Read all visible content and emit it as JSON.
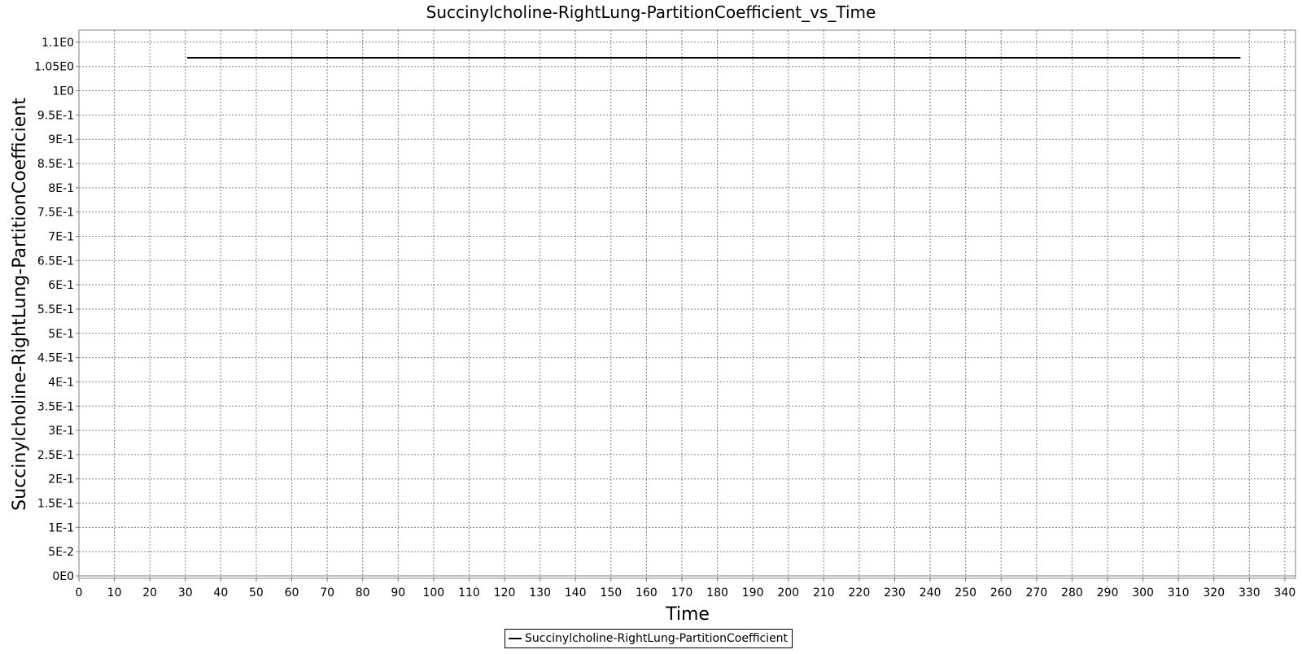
{
  "chart_data": {
    "type": "line",
    "title": "Succinylcholine-RightLung-PartitionCoefficient_vs_Time",
    "xlabel": "Time",
    "ylabel": "Succinylcholine-RightLung-PartitionCoefficient",
    "xlim": [
      0,
      343
    ],
    "ylim": [
      -0.005,
      1.125
    ],
    "x_ticks": [
      0,
      10,
      20,
      30,
      40,
      50,
      60,
      70,
      80,
      90,
      100,
      110,
      120,
      130,
      140,
      150,
      160,
      170,
      180,
      190,
      200,
      210,
      220,
      230,
      240,
      250,
      260,
      270,
      280,
      290,
      300,
      310,
      320,
      330,
      340
    ],
    "y_ticks": [
      {
        "value": 0,
        "label": "0E0"
      },
      {
        "value": 0.05,
        "label": "5E-2"
      },
      {
        "value": 0.1,
        "label": "1E-1"
      },
      {
        "value": 0.15,
        "label": "1.5E-1"
      },
      {
        "value": 0.2,
        "label": "2E-1"
      },
      {
        "value": 0.25,
        "label": "2.5E-1"
      },
      {
        "value": 0.3,
        "label": "3E-1"
      },
      {
        "value": 0.35,
        "label": "3.5E-1"
      },
      {
        "value": 0.4,
        "label": "4E-1"
      },
      {
        "value": 0.45,
        "label": "4.5E-1"
      },
      {
        "value": 0.5,
        "label": "5E-1"
      },
      {
        "value": 0.55,
        "label": "5.5E-1"
      },
      {
        "value": 0.6,
        "label": "6E-1"
      },
      {
        "value": 0.65,
        "label": "6.5E-1"
      },
      {
        "value": 0.7,
        "label": "7E-1"
      },
      {
        "value": 0.75,
        "label": "7.5E-1"
      },
      {
        "value": 0.8,
        "label": "8E-1"
      },
      {
        "value": 0.85,
        "label": "8.5E-1"
      },
      {
        "value": 0.9,
        "label": "9E-1"
      },
      {
        "value": 0.95,
        "label": "9.5E-1"
      },
      {
        "value": 1.0,
        "label": "1E0"
      },
      {
        "value": 1.05,
        "label": "1.05E0"
      },
      {
        "value": 1.1,
        "label": "1.1E0"
      }
    ],
    "grid": true,
    "legend_position": "bottom-center",
    "series": [
      {
        "name": "Succinylcholine-RightLung-PartitionCoefficient",
        "color": "#000000",
        "x": [
          30.5,
          327.5
        ],
        "y": [
          1.068,
          1.068
        ]
      }
    ]
  }
}
